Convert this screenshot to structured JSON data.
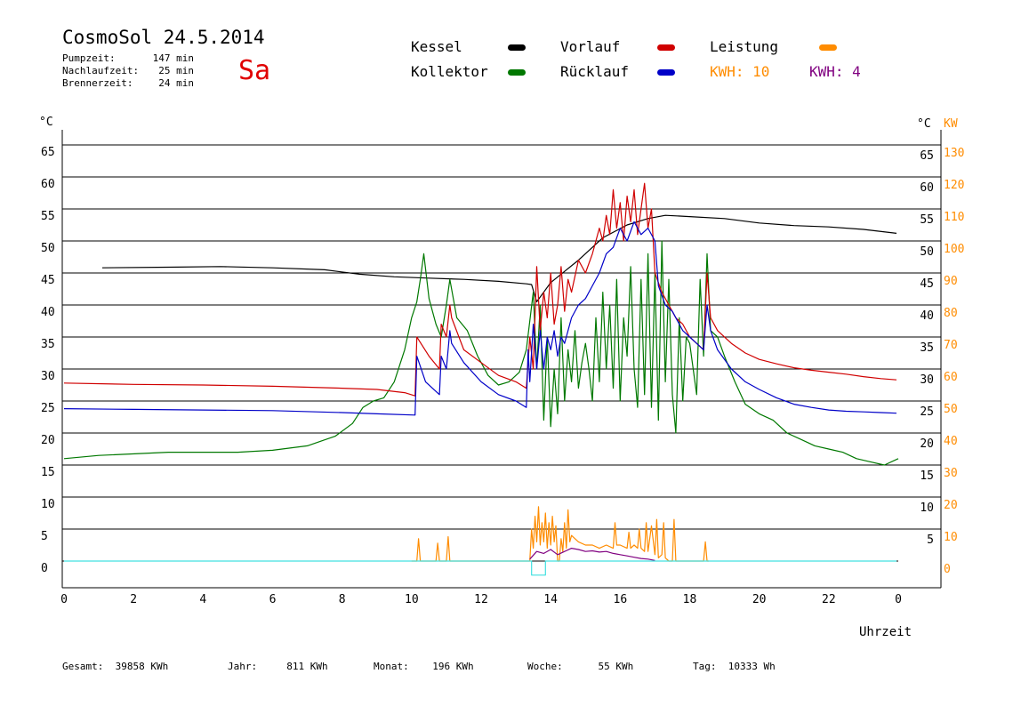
{
  "header": {
    "title": "CosmoSol 24.5.2014",
    "info": [
      {
        "label": "Pumpzeit:",
        "value": "147 min"
      },
      {
        "label": "Nachlaufzeit:",
        "value": "25 min"
      },
      {
        "label": "Brennerzeit:",
        "value": "24 min"
      }
    ],
    "day": "Sa"
  },
  "legend": {
    "kessel": "Kessel",
    "kollektor": "Kollektor",
    "vorlauf": "Vorlauf",
    "ruecklauf": "Rücklauf",
    "leistung": "Leistung",
    "kwh_orange": "KWH: 10",
    "kwh_purple": "KWH: 4"
  },
  "colors": {
    "kessel": "#000000",
    "kollektor": "#007800",
    "vorlauf": "#d00000",
    "ruecklauf": "#0000c8",
    "leistung": "#ff8c00",
    "kwh_purple": "#800080",
    "pumpe": "#40e0e0"
  },
  "axes": {
    "left_unit": "°C",
    "right_unit_temp": "°C",
    "right_unit_power": "KW",
    "x_label": "Uhrzeit"
  },
  "footer": [
    {
      "label": "Gesamt:",
      "value": "39858 KWh"
    },
    {
      "label": "Jahr:",
      "value": "811 KWh"
    },
    {
      "label": "Monat:",
      "value": "196 KWh"
    },
    {
      "label": "Woche:",
      "value": "55 KWh"
    },
    {
      "label": "Tag:",
      "value": "10333 Wh"
    }
  ],
  "chart_data": {
    "type": "line",
    "xlabel": "Uhrzeit",
    "xlim": [
      0,
      24
    ],
    "x_ticks": [
      "0",
      "2",
      "4",
      "6",
      "8",
      "10",
      "12",
      "14",
      "16",
      "18",
      "20",
      "22",
      "0"
    ],
    "ylim": [
      0,
      70
    ],
    "y_ticks_left": [
      "65",
      "60",
      "55",
      "50",
      "45",
      "40",
      "35",
      "30",
      "25",
      "20",
      "15",
      "10",
      "5",
      "0"
    ],
    "y_ticks_right_temp": [
      "65",
      "60",
      "55",
      "50",
      "45",
      "40",
      "35",
      "30",
      "25",
      "20",
      "15",
      "10",
      "5"
    ],
    "y2_ticks": [
      "130",
      "120",
      "110",
      "100",
      "90",
      "80",
      "70",
      "60",
      "50",
      "40",
      "30",
      "20",
      "10",
      "0"
    ],
    "series": [
      {
        "name": "Kessel",
        "color": "#000000",
        "x": [
          1.1,
          3.0,
          4.5,
          6.0,
          7.5,
          8.5,
          9.5,
          10.5,
          11.5,
          12.5,
          13.3,
          13.45,
          13.6,
          14.0,
          14.8,
          15.5,
          16.2,
          16.8,
          17.3,
          18.0,
          19.0,
          20.0,
          21.0,
          22.0,
          23.0,
          23.95
        ],
        "y": [
          45.8,
          45.9,
          46.0,
          45.8,
          45.5,
          44.8,
          44.4,
          44.2,
          44.0,
          43.7,
          43.3,
          43.2,
          40.5,
          43.5,
          47.0,
          50.5,
          52.5,
          53.5,
          54.0,
          53.8,
          53.5,
          52.8,
          52.4,
          52.2,
          51.8,
          51.2
        ]
      },
      {
        "name": "Kollektor",
        "color": "#007800",
        "x": [
          0.0,
          1.0,
          3.0,
          5.0,
          6.0,
          7.0,
          7.8,
          8.3,
          8.6,
          8.9,
          9.2,
          9.5,
          9.8,
          10.0,
          10.15,
          10.25,
          10.35,
          10.5,
          10.7,
          10.85,
          11.0,
          11.1,
          11.3,
          11.6,
          11.9,
          12.2,
          12.5,
          12.8,
          13.1,
          13.3,
          13.5,
          13.6,
          13.7,
          13.8,
          13.9,
          14.0,
          14.1,
          14.2,
          14.3,
          14.4,
          14.5,
          14.6,
          14.7,
          14.8,
          14.9,
          15.0,
          15.1,
          15.2,
          15.3,
          15.4,
          15.5,
          15.6,
          15.7,
          15.8,
          15.9,
          16.0,
          16.1,
          16.2,
          16.3,
          16.4,
          16.5,
          16.6,
          16.7,
          16.8,
          16.9,
          17.0,
          17.1,
          17.2,
          17.3,
          17.4,
          17.5,
          17.6,
          17.7,
          17.8,
          17.9,
          18.0,
          18.1,
          18.2,
          18.3,
          18.4,
          18.5,
          18.6,
          18.8,
          19.0,
          19.3,
          19.6,
          20.0,
          20.4,
          20.8,
          21.2,
          21.6,
          22.0,
          22.4,
          22.8,
          23.2,
          23.6,
          24.0
        ],
        "y": [
          16.0,
          16.5,
          17.0,
          17.0,
          17.3,
          18.0,
          19.5,
          21.5,
          24.0,
          25.0,
          25.5,
          28.0,
          33.0,
          38.0,
          40.5,
          44.0,
          48.0,
          41.0,
          37.0,
          35.0,
          40.0,
          44.0,
          38.0,
          36.0,
          32.0,
          29.0,
          27.5,
          28.0,
          29.5,
          33.0,
          42.0,
          30.0,
          40.0,
          22.0,
          35.0,
          21.0,
          30.0,
          23.0,
          38.0,
          25.0,
          33.0,
          28.0,
          36.0,
          27.0,
          31.0,
          34.0,
          30.0,
          25.0,
          38.0,
          28.0,
          42.0,
          30.0,
          40.0,
          27.0,
          44.0,
          25.0,
          38.0,
          32.0,
          46.0,
          30.0,
          24.0,
          44.0,
          26.0,
          48.0,
          24.0,
          45.0,
          22.0,
          50.0,
          28.0,
          44.0,
          26.0,
          20.0,
          38.0,
          25.0,
          35.0,
          34.0,
          30.0,
          26.0,
          44.0,
          32.0,
          48.0,
          36.0,
          35.0,
          32.0,
          28.0,
          24.5,
          23.0,
          22.0,
          20.0,
          19.0,
          18.0,
          17.5,
          17.0,
          16.0,
          15.5,
          15.0,
          16.0
        ]
      },
      {
        "name": "Vorlauf",
        "color": "#d00000",
        "x": [
          0.0,
          2.0,
          4.0,
          6.0,
          8.0,
          9.0,
          9.8,
          10.1,
          10.15,
          10.5,
          10.8,
          10.85,
          11.0,
          11.1,
          11.15,
          11.5,
          12.0,
          12.5,
          13.0,
          13.3,
          13.4,
          13.5,
          13.6,
          13.7,
          13.8,
          13.9,
          14.0,
          14.1,
          14.2,
          14.3,
          14.4,
          14.5,
          14.6,
          14.8,
          15.0,
          15.2,
          15.4,
          15.5,
          15.6,
          15.7,
          15.8,
          15.9,
          16.0,
          16.1,
          16.2,
          16.3,
          16.4,
          16.5,
          16.6,
          16.7,
          16.8,
          16.9,
          17.0,
          17.2,
          17.4,
          17.6,
          17.8,
          18.0,
          18.2,
          18.4,
          18.5,
          18.6,
          18.8,
          19.2,
          19.6,
          20.0,
          20.5,
          21.0,
          21.5,
          22.0,
          22.5,
          23.0,
          23.5,
          23.95
        ],
        "y": [
          27.8,
          27.6,
          27.5,
          27.3,
          27.0,
          26.8,
          26.3,
          25.8,
          35.0,
          32.0,
          30.0,
          37.0,
          35.0,
          40.0,
          38.0,
          33.0,
          31.0,
          29.0,
          28.0,
          27.0,
          35.0,
          30.0,
          46.0,
          36.0,
          42.0,
          38.0,
          45.0,
          37.0,
          40.0,
          46.0,
          39.0,
          44.0,
          42.0,
          47.0,
          45.0,
          48.0,
          52.0,
          50.0,
          54.0,
          51.0,
          58.0,
          52.0,
          56.0,
          50.0,
          57.0,
          53.0,
          58.0,
          51.0,
          55.0,
          59.0,
          52.0,
          55.0,
          45.0,
          42.0,
          40.0,
          38.0,
          37.0,
          35.0,
          34.0,
          33.0,
          45.0,
          38.0,
          36.0,
          34.0,
          32.5,
          31.5,
          30.8,
          30.2,
          29.8,
          29.5,
          29.2,
          28.8,
          28.5,
          28.3
        ]
      },
      {
        "name": "Rücklauf",
        "color": "#0000c8",
        "x": [
          0.0,
          2.0,
          4.0,
          6.0,
          8.0,
          9.0,
          10.1,
          10.15,
          10.4,
          10.8,
          10.85,
          11.0,
          11.1,
          11.15,
          11.5,
          12.0,
          12.5,
          13.0,
          13.3,
          13.35,
          13.4,
          13.5,
          13.6,
          13.7,
          13.8,
          13.9,
          14.0,
          14.1,
          14.2,
          14.3,
          14.4,
          14.5,
          14.6,
          14.8,
          15.0,
          15.2,
          15.4,
          15.6,
          15.8,
          16.0,
          16.2,
          16.4,
          16.6,
          16.8,
          17.0,
          17.1,
          17.3,
          17.5,
          17.7,
          17.8,
          18.0,
          18.2,
          18.4,
          18.5,
          18.6,
          18.8,
          19.2,
          19.6,
          20.0,
          20.5,
          21.0,
          21.5,
          22.0,
          22.5,
          23.0,
          23.5,
          23.95
        ],
        "y": [
          23.8,
          23.7,
          23.6,
          23.5,
          23.2,
          23.0,
          22.8,
          32.0,
          28.0,
          26.0,
          32.0,
          30.0,
          36.0,
          34.0,
          31.0,
          28.0,
          26.0,
          25.0,
          24.0,
          33.0,
          28.0,
          37.0,
          30.0,
          36.0,
          30.0,
          35.0,
          33.0,
          36.0,
          32.0,
          35.0,
          34.0,
          36.0,
          38.0,
          40.0,
          41.0,
          43.0,
          45.0,
          48.0,
          49.0,
          52.0,
          50.0,
          53.0,
          51.0,
          52.0,
          50.0,
          43.0,
          40.0,
          39.0,
          37.0,
          36.0,
          35.0,
          34.0,
          33.0,
          40.0,
          36.0,
          33.0,
          30.0,
          28.0,
          26.8,
          25.5,
          24.5,
          24.0,
          23.6,
          23.4,
          23.3,
          23.2,
          23.1
        ]
      },
      {
        "name": "Leistung",
        "color": "#ff8c00",
        "x": [
          10.0,
          10.15,
          10.2,
          10.25,
          10.7,
          10.75,
          10.8,
          11.0,
          11.05,
          11.1,
          11.15,
          13.4,
          13.45,
          13.5,
          13.55,
          13.6,
          13.65,
          13.7,
          13.75,
          13.8,
          13.85,
          13.9,
          13.95,
          14.0,
          14.05,
          14.1,
          14.15,
          14.2,
          14.25,
          14.3,
          14.35,
          14.4,
          14.45,
          14.5,
          14.55,
          14.6,
          14.8,
          15.0,
          15.2,
          15.4,
          15.6,
          15.8,
          15.85,
          15.9,
          16.0,
          16.2,
          16.25,
          16.3,
          16.4,
          16.5,
          16.55,
          16.6,
          16.7,
          16.75,
          16.8,
          16.9,
          17.0,
          17.05,
          17.1,
          17.2,
          17.25,
          17.3,
          17.4,
          17.5,
          17.55,
          17.6,
          18.4,
          18.45,
          18.5,
          18.55
        ],
        "y": [
          0,
          0,
          3.5,
          0,
          0,
          2.8,
          0,
          0,
          3.8,
          0,
          0,
          0,
          5.0,
          2.0,
          7.0,
          3.0,
          8.5,
          2.5,
          6.0,
          3.0,
          7.5,
          2.0,
          6.0,
          2.5,
          7.0,
          3.0,
          5.5,
          0,
          0,
          3.5,
          1.5,
          6.0,
          2.0,
          8.0,
          3.0,
          4.0,
          3.0,
          2.5,
          2.5,
          2.0,
          2.5,
          2.0,
          6.0,
          2.5,
          2.5,
          2.0,
          4.5,
          2.0,
          2.5,
          2.0,
          5.0,
          2.0,
          1.5,
          6.0,
          1.5,
          5.5,
          1.0,
          6.5,
          0.5,
          1.0,
          6.0,
          0.5,
          0,
          0,
          6.5,
          0,
          0,
          3.0,
          0,
          0
        ]
      },
      {
        "name": "KWH: 4",
        "color": "#800080",
        "x": [
          13.4,
          13.6,
          13.8,
          14.0,
          14.2,
          14.4,
          14.6,
          14.8,
          15.0,
          15.2,
          15.4,
          15.6,
          15.8,
          16.0,
          16.2,
          16.4,
          16.6,
          16.8,
          17.0
        ],
        "y": [
          0.3,
          1.5,
          1.2,
          1.8,
          1.0,
          1.5,
          2.0,
          1.8,
          1.5,
          1.6,
          1.4,
          1.5,
          1.2,
          1.0,
          0.8,
          0.6,
          0.4,
          0.3,
          0.1
        ]
      },
      {
        "name": "Pumpe",
        "color": "#40e0e0",
        "x": [
          0.0,
          13.45,
          13.45,
          13.85,
          13.85,
          23.95
        ],
        "y": [
          0,
          0,
          -2.2,
          -2.2,
          0,
          0
        ]
      }
    ]
  }
}
